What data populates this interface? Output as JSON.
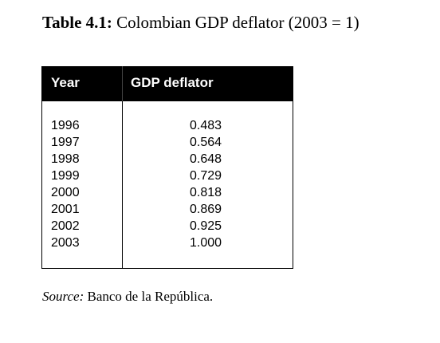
{
  "caption": {
    "label": "Table 4.1:",
    "text": " Colombian GDP deflator (2003 = 1)"
  },
  "table": {
    "headers": {
      "year": "Year",
      "deflator": "GDP deflator"
    },
    "rows": [
      {
        "year": "1996",
        "value": "0.483"
      },
      {
        "year": "1997",
        "value": "0.564"
      },
      {
        "year": "1998",
        "value": "0.648"
      },
      {
        "year": "1999",
        "value": "0.729"
      },
      {
        "year": "2000",
        "value": "0.818"
      },
      {
        "year": "2001",
        "value": "0.869"
      },
      {
        "year": "2002",
        "value": "0.925"
      },
      {
        "year": "2003",
        "value": "1.000"
      }
    ]
  },
  "source": {
    "label": "Source:",
    "text": " Banco de la República."
  }
}
